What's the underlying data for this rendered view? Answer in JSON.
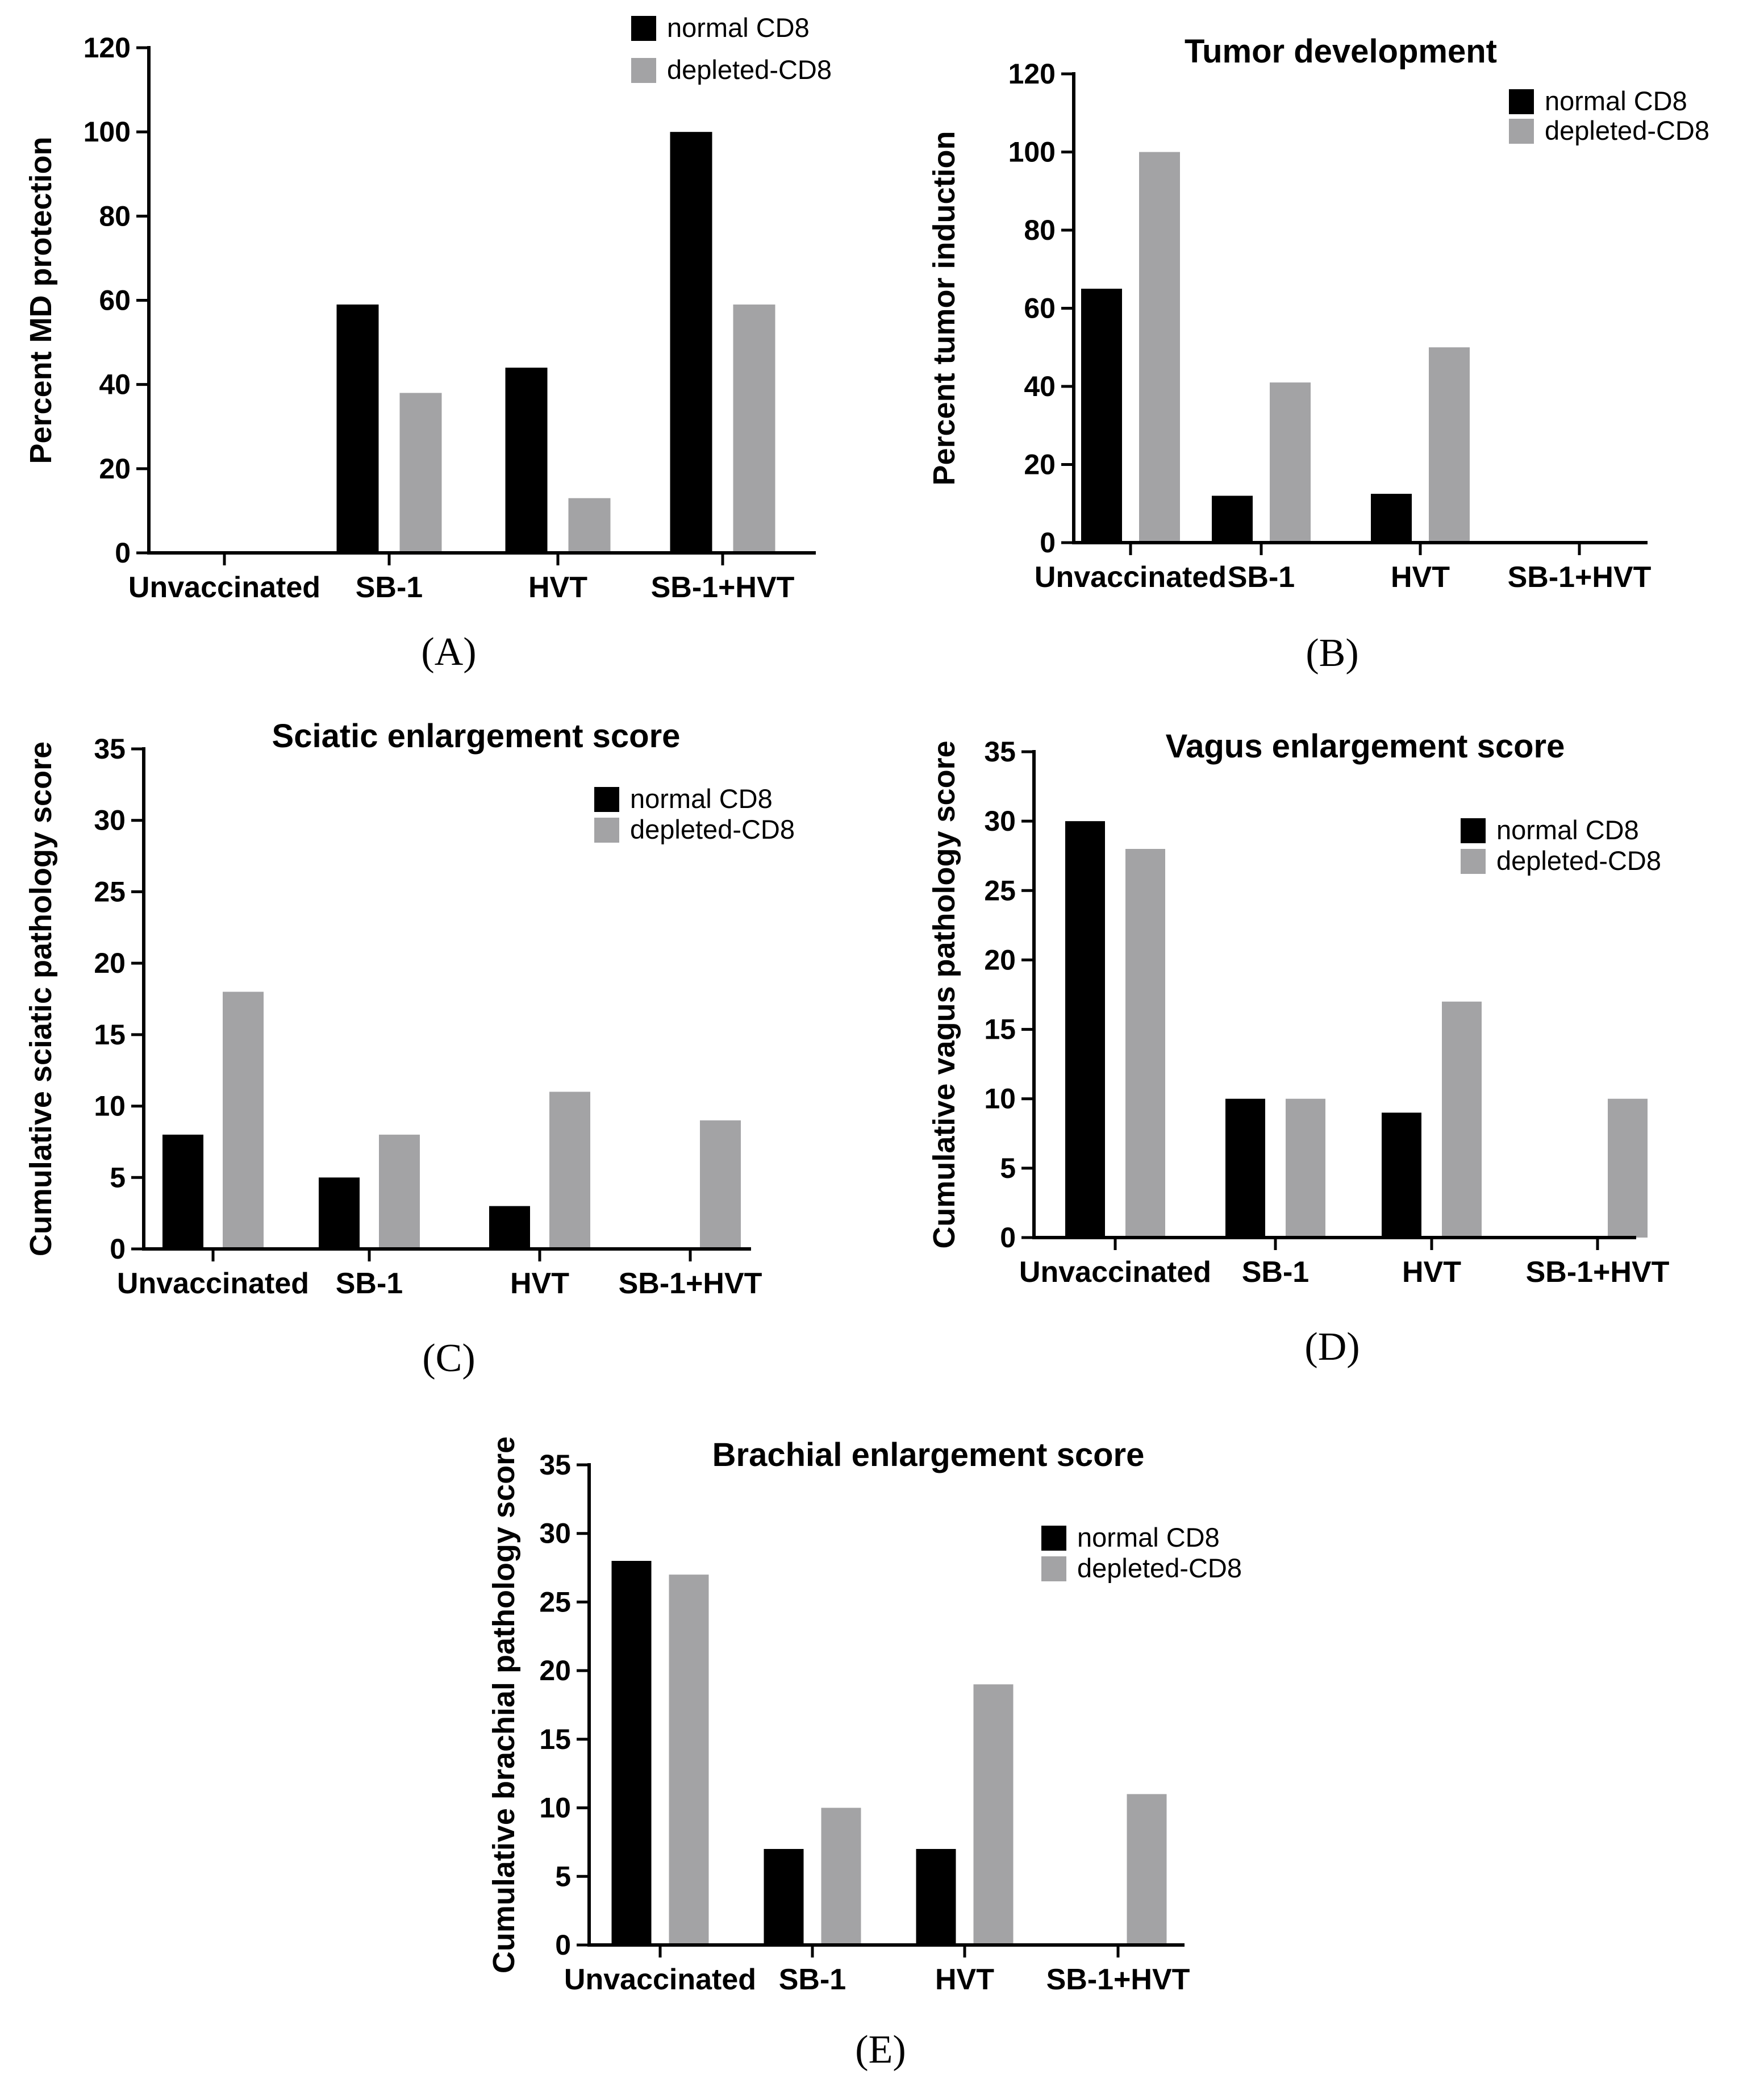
{
  "colors": {
    "normal": "#000000",
    "depleted": "#a3a3a5"
  },
  "chart_data": [
    {
      "id": "A",
      "type": "bar",
      "panel_label": "(A)",
      "title": "",
      "xlabel": "",
      "ylabel": "Percent MD protection",
      "ylim": [
        0,
        120
      ],
      "yticks": [
        0,
        20,
        40,
        60,
        80,
        100,
        120
      ],
      "categories": [
        "Unvaccinated",
        "SB-1",
        "HVT",
        "SB-1+HVT"
      ],
      "legend_position": "top-center",
      "series": [
        {
          "name": "normal CD8",
          "values": [
            0,
            59,
            44,
            100
          ]
        },
        {
          "name": "depleted-CD8",
          "values": [
            0,
            38,
            13,
            59
          ]
        }
      ]
    },
    {
      "id": "B",
      "type": "bar",
      "panel_label": "(B)",
      "title": "Tumor development",
      "xlabel": "",
      "ylabel": "Percent tumor induction",
      "ylim": [
        0,
        120
      ],
      "yticks": [
        0,
        20,
        40,
        60,
        80,
        100,
        120
      ],
      "categories": [
        "Unvaccinated",
        "SB-1",
        "HVT",
        "SB-1+HVT"
      ],
      "legend_position": "top-right",
      "series": [
        {
          "name": "normal CD8",
          "values": [
            65,
            12,
            12.5,
            0
          ]
        },
        {
          "name": "depleted-CD8",
          "values": [
            100,
            41,
            50,
            0
          ]
        }
      ]
    },
    {
      "id": "C",
      "type": "bar",
      "panel_label": "(C)",
      "title": "Sciatic enlargement score",
      "xlabel": "",
      "ylabel": "Cumulative sciatic pathology score",
      "ylim": [
        0,
        35
      ],
      "yticks": [
        0,
        5,
        10,
        15,
        20,
        25,
        30,
        35
      ],
      "categories": [
        "Unvaccinated",
        "SB-1",
        "HVT",
        "SB-1+HVT"
      ],
      "legend_position": "top-right",
      "series": [
        {
          "name": "normal CD8",
          "values": [
            8,
            5,
            3,
            0
          ]
        },
        {
          "name": "depleted-CD8",
          "values": [
            18,
            8,
            11,
            9
          ]
        }
      ]
    },
    {
      "id": "D",
      "type": "bar",
      "panel_label": "(D)",
      "title": "Vagus enlargement score",
      "xlabel": "",
      "ylabel": "Cumulative vagus pathology score",
      "ylim": [
        0,
        35
      ],
      "yticks": [
        0,
        5,
        10,
        15,
        20,
        25,
        30,
        35
      ],
      "categories": [
        "Unvaccinated",
        "SB-1",
        "HVT",
        "SB-1+HVT"
      ],
      "legend_position": "top-right",
      "series": [
        {
          "name": "normal CD8",
          "values": [
            30,
            10,
            9,
            0
          ]
        },
        {
          "name": "depleted-CD8",
          "values": [
            28,
            10,
            17,
            10
          ]
        }
      ]
    },
    {
      "id": "E",
      "type": "bar",
      "panel_label": "(E)",
      "title": "Brachial enlargement score",
      "xlabel": "",
      "ylabel": "Cumulative brachial pathology score",
      "ylim": [
        0,
        35
      ],
      "yticks": [
        0,
        5,
        10,
        15,
        20,
        25,
        30,
        35
      ],
      "categories": [
        "Unvaccinated",
        "SB-1",
        "HVT",
        "SB-1+HVT"
      ],
      "legend_position": "top-right",
      "series": [
        {
          "name": "normal CD8",
          "values": [
            28,
            7,
            7,
            0
          ]
        },
        {
          "name": "depleted-CD8",
          "values": [
            27,
            10,
            19,
            11
          ]
        }
      ]
    }
  ]
}
